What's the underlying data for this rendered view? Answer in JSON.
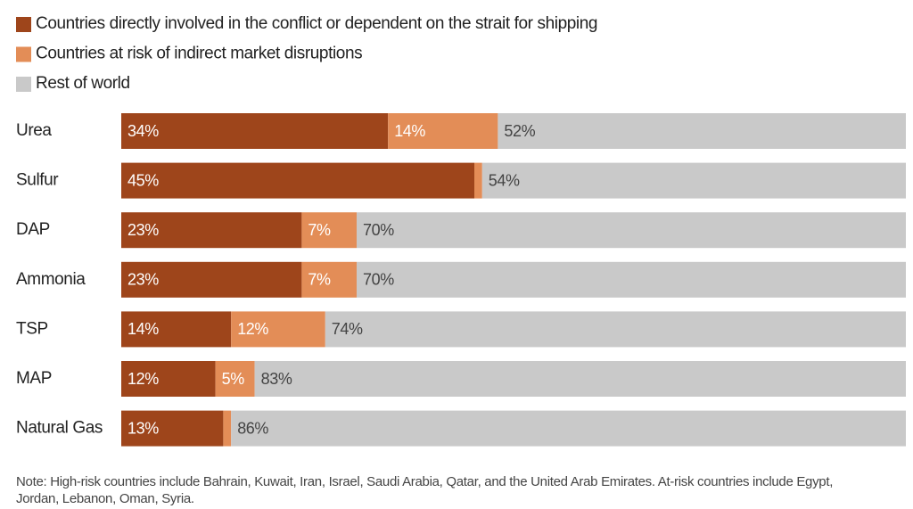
{
  "chart_data": {
    "type": "stacked-bar",
    "orientation": "horizontal",
    "categories": [
      "Urea",
      "Sulfur",
      "DAP",
      "Ammonia",
      "TSP",
      "MAP",
      "Natural Gas"
    ],
    "series": [
      {
        "name": "Countries directly involved in the conflict or dependent on the strait for shipping",
        "color": "#9e451b",
        "values": [
          34,
          45,
          23,
          23,
          14,
          12,
          13
        ],
        "value_labels": [
          "34%",
          "45%",
          "23%",
          "23%",
          "14%",
          "12%",
          "13%"
        ]
      },
      {
        "name": "Countries at risk of indirect market disruptions",
        "color": "#e38d57",
        "values": [
          14,
          1,
          7,
          7,
          12,
          5,
          1
        ],
        "value_labels": [
          "14%",
          null,
          "7%",
          "7%",
          "12%",
          "5%",
          null
        ]
      },
      {
        "name": "Rest of world",
        "color": "#c9c9c9",
        "values": [
          52,
          54,
          70,
          70,
          74,
          83,
          86
        ],
        "value_labels": [
          "52%",
          "54%",
          "70%",
          "70%",
          "74%",
          "83%",
          "86%"
        ]
      }
    ],
    "note": "Note: High-risk countries include Bahrain, Kuwait, Iran, Israel, Saudi Arabia, Qatar, and the United Arab Emirates. At-risk countries include Egypt, Jordan, Lebanon, Oman, Syria."
  }
}
